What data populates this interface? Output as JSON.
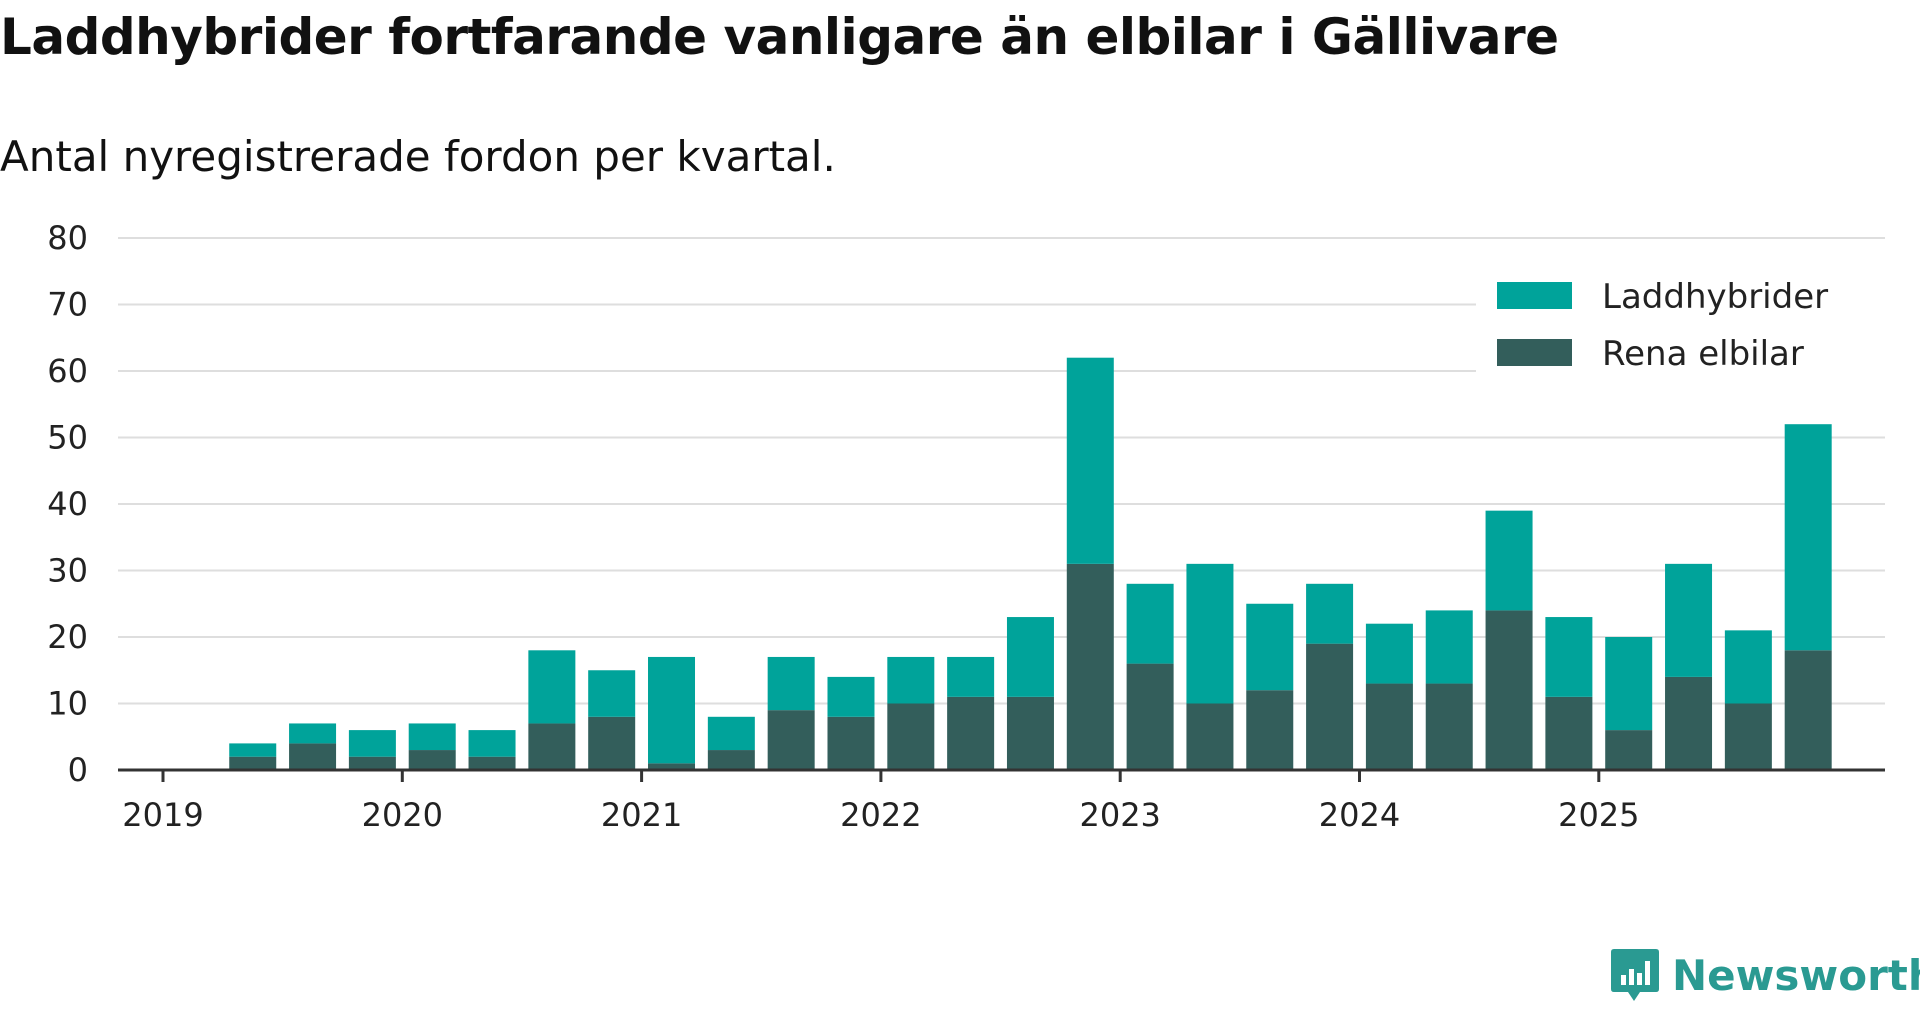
{
  "chart_data": {
    "type": "bar",
    "stacked": true,
    "title": "Laddhybrider fortfarande vanligare än elbilar i Gällivare",
    "subtitle": "Antal nyregistrerade fordon per kvartal.",
    "ylim": [
      0,
      80
    ],
    "yticks": [
      "0",
      "10",
      "20",
      "30",
      "40",
      "50",
      "60",
      "70",
      "80"
    ],
    "ytick_values": [
      0,
      10,
      20,
      30,
      40,
      50,
      60,
      70,
      80
    ],
    "xticks": [
      "2019",
      "2020",
      "2021",
      "2022",
      "2023",
      "2024",
      "2025"
    ],
    "categories": [
      "2019 Q2",
      "2019 Q3",
      "2019 Q4",
      "2020 Q1",
      "2020 Q2",
      "2020 Q3",
      "2020 Q4",
      "2021 Q1",
      "2021 Q2",
      "2021 Q3",
      "2021 Q4",
      "2022 Q1",
      "2022 Q2",
      "2022 Q3",
      "2022 Q4",
      "2023 Q1",
      "2023 Q2",
      "2023 Q3",
      "2023 Q4",
      "2024 Q1",
      "2024 Q2",
      "2024 Q3",
      "2024 Q4",
      "2025 Q1",
      "2025 Q2",
      "2025 Q3",
      "2025 Q4"
    ],
    "series": [
      {
        "name": "Rena elbilar",
        "color": "#335e5b",
        "values": [
          2,
          4,
          2,
          3,
          2,
          7,
          8,
          1,
          3,
          9,
          8,
          10,
          11,
          11,
          31,
          16,
          10,
          12,
          19,
          13,
          13,
          24,
          11,
          6,
          14,
          10,
          18
        ]
      },
      {
        "name": "Laddhybrider",
        "color": "#00a39a",
        "values": [
          2,
          3,
          4,
          4,
          4,
          11,
          7,
          16,
          5,
          8,
          6,
          7,
          6,
          12,
          31,
          12,
          21,
          13,
          9,
          9,
          11,
          15,
          12,
          14,
          17,
          11,
          34
        ]
      }
    ],
    "legend": {
      "position": "top-right",
      "entries": [
        "Laddhybrider",
        "Rena elbilar"
      ]
    },
    "grid": true
  },
  "brand": {
    "name": "Newsworthy",
    "color": "#2a9a92"
  }
}
